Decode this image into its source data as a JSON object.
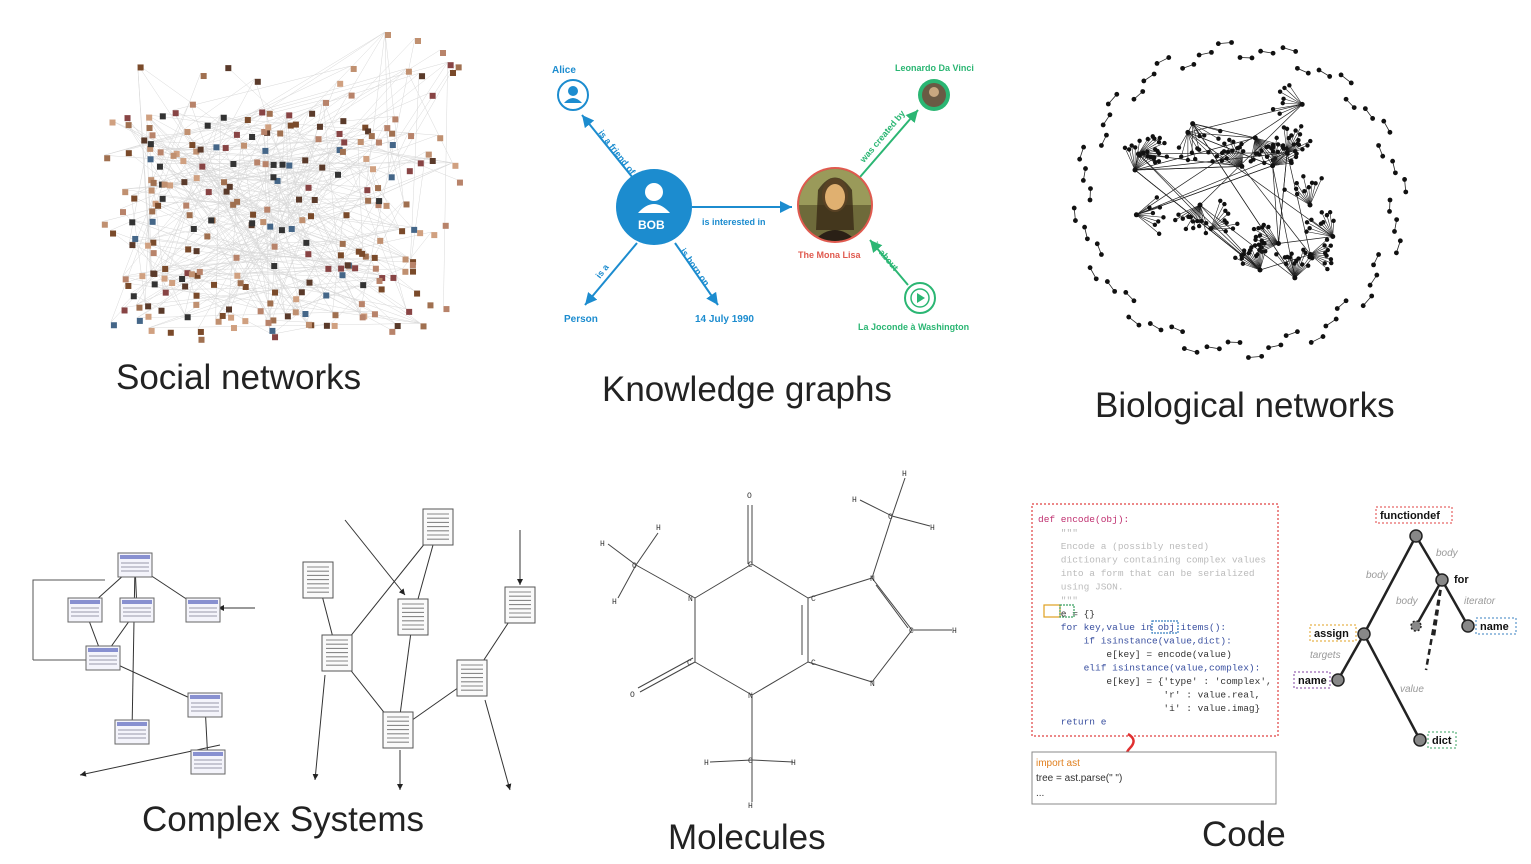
{
  "captions": {
    "social": "Social networks",
    "knowledge": "Knowledge graphs",
    "biological": "Biological networks",
    "complex": "Complex Systems",
    "molecules": "Molecules",
    "code": "Code"
  },
  "knowledge_graph": {
    "nodes": {
      "alice": "Alice",
      "bob": "BOB",
      "person": "Person",
      "date": "14 July 1990",
      "mona": "The Mona Lisa",
      "leonardo": "Leonardo Da Vinci",
      "joconde": "La Joconde à Washington"
    },
    "edges": {
      "friend": "is a friend of",
      "interested": "is interested in",
      "is_a": "is a",
      "born": "is born on",
      "created": "was created by",
      "about": "is about"
    },
    "colors": {
      "blue": "#1c8ccf",
      "green": "#2bb673",
      "red": "#e05a4f"
    }
  },
  "code": {
    "lines": [
      "def encode(obj):",
      "    \"\"\"",
      "    Encode a (possibly nested)",
      "    dictionary containing complex values",
      "    into a form that can be serialized",
      "    using JSON.",
      "    \"\"\"",
      "    e = {}",
      "    for key,value in obj.items():",
      "        if isinstance(value,dict):",
      "            e[key] = encode(value)",
      "        elif isinstance(value,complex):",
      "            e[key] = {'type' : 'complex',",
      "                      'r' : value.real,",
      "                      'i' : value.imag}",
      "    return e"
    ],
    "snippet": [
      "import ast",
      "tree = ast.parse(\"  \")",
      "..."
    ],
    "ast": {
      "functiondef": "functiondef",
      "for": "for",
      "assign": "assign",
      "name1": "name",
      "name2": "name",
      "dict": "dict",
      "body1": "body",
      "body2": "body",
      "body3": "body",
      "iterator": "iterator",
      "targets": "targets",
      "value": "value"
    }
  },
  "molecule": {
    "atom_c": "C",
    "atom_n": "N",
    "atom_o": "O",
    "atom_h": "H"
  }
}
